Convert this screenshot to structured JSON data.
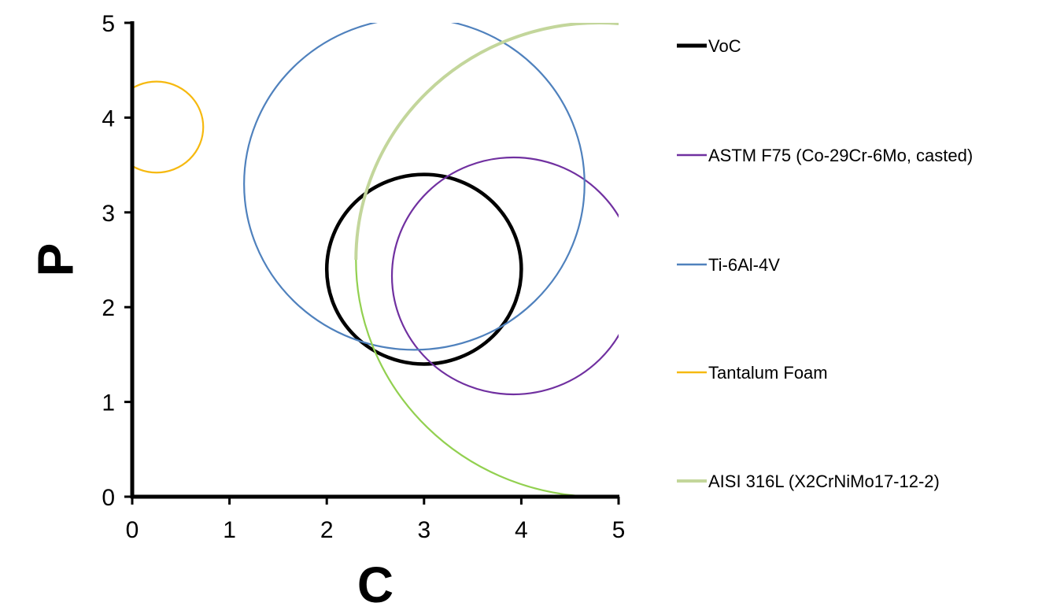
{
  "chart_data": {
    "type": "line",
    "title": "",
    "xlabel": "C",
    "ylabel": "P",
    "xlim": [
      0,
      5
    ],
    "ylim": [
      0,
      5
    ],
    "x_ticks": [
      "0",
      "1",
      "2",
      "3",
      "4",
      "5"
    ],
    "y_ticks": [
      "0",
      "1",
      "2",
      "3",
      "4",
      "5"
    ],
    "grid": false,
    "legend_position": "right",
    "series": [
      {
        "name": "VoC",
        "color": "#000000",
        "shape": "circle",
        "center": [
          3.0,
          2.4
        ],
        "radius": 1.0
      },
      {
        "name": "ASTM F75 (Co-29Cr-6Mo, casted)",
        "color": "#7030A0",
        "shape": "circle",
        "center": [
          3.92,
          2.33
        ],
        "radius": 1.25
      },
      {
        "name": "Ti-6Al-4V",
        "color": "#4F81BD",
        "shape": "circle",
        "center": [
          2.9,
          3.3
        ],
        "radius": 1.75
      },
      {
        "name": "Tantalum Foam",
        "color": "#F6B910",
        "shape": "circle",
        "center": [
          0.25,
          3.9
        ],
        "radius": 0.48
      },
      {
        "name": "AISI 316L (X2CrNiMo17-12-2)",
        "color": "#92D050",
        "upper_color": "#C3D69B",
        "shape": "circle",
        "center": [
          4.8,
          2.5
        ],
        "radius": 2.5
      }
    ]
  }
}
